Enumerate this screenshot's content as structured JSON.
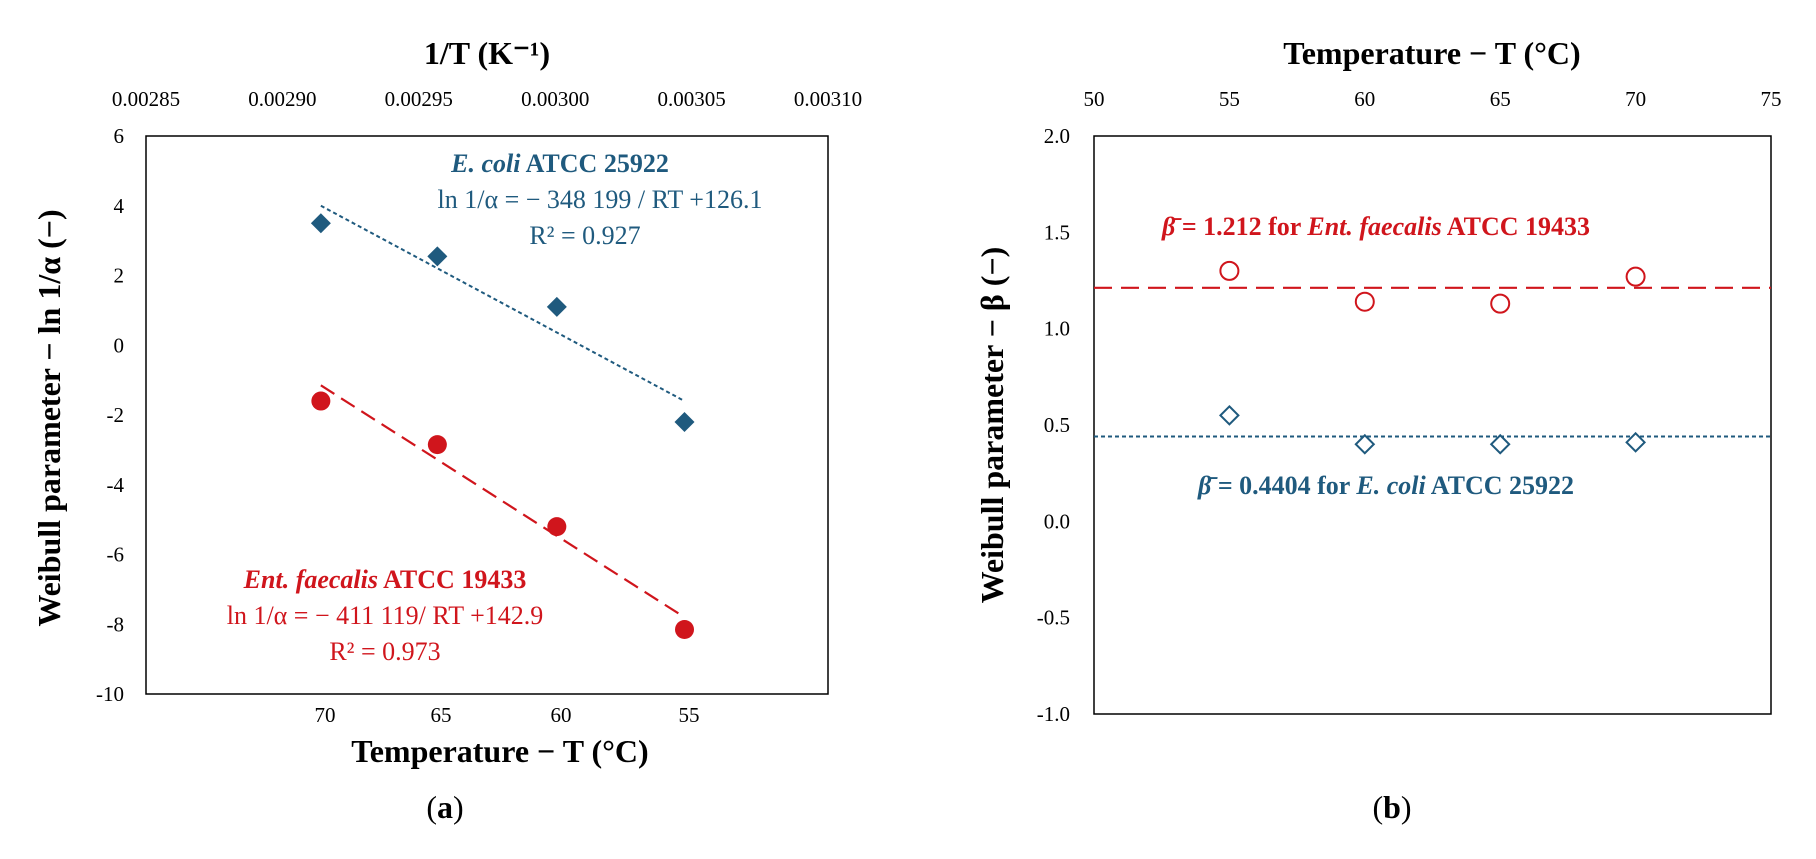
{
  "chart_data": [
    {
      "panel_label_prefix": "(",
      "panel_label": "a",
      "panel_label_suffix": ")",
      "type": "scatter",
      "top_axis": {
        "label": "1/T (K⁻¹)",
        "range": [
          0.00285,
          0.0031
        ],
        "ticks": [
          "0.00285",
          "0.00290",
          "0.00295",
          "0.00300",
          "0.00305",
          "0.00310"
        ]
      },
      "bottom_axis": {
        "label": "Temperature − T (°C)",
        "ticks": [
          "70",
          "65",
          "60",
          "55"
        ],
        "tick_positions_invT": [
          0.0029141,
          0.0029568,
          0.0030006,
          0.0030474
        ]
      },
      "y_axis": {
        "label": "Weibull parameter − ln 1/α (−)",
        "range": [
          -10,
          6
        ],
        "ticks": [
          "6",
          "4",
          "2",
          "0",
          "-2",
          "-4",
          "-6",
          "-8",
          "-10"
        ]
      },
      "colors": {
        "ecoli": "#1f5a7e",
        "entf": "#d0151c"
      },
      "series": [
        {
          "name": "E. coli ATCC 25922",
          "marker": "filled-diamond",
          "x_invT": [
            0.0029141,
            0.0029568,
            0.0030006,
            0.0030474
          ],
          "y": [
            3.5,
            2.55,
            1.1,
            -2.2
          ],
          "fit": {
            "x": [
              0.0029141,
              0.0030474
            ],
            "y": [
              4.0,
              -1.6
            ]
          }
        },
        {
          "name": "Ent. faecalis ATCC 19433",
          "marker": "filled-circle",
          "x_invT": [
            0.0029141,
            0.0029568,
            0.0030006,
            0.0030474
          ],
          "y": [
            -1.6,
            -2.85,
            -5.2,
            -8.15
          ],
          "fit": {
            "x": [
              0.0029141,
              0.0030474
            ],
            "y": [
              -1.15,
              -7.8
            ]
          }
        }
      ],
      "annotations": {
        "ecoli": {
          "italic": "E. coli",
          "bold": " ATCC 25922",
          "equation": "ln 1/α = − 348 199 / RT +126.1",
          "r2": "R² = 0.927"
        },
        "entf": {
          "italic": "Ent. faecalis",
          "bold": " ATCC 19433",
          "equation": "ln 1/α = − 411 119/ RT +142.9",
          "r2": "R² = 0.973"
        }
      }
    },
    {
      "panel_label_prefix": "(",
      "panel_label": "b",
      "panel_label_suffix": ")",
      "type": "scatter",
      "top_axis": {
        "label": "Temperature − T (°C)",
        "range": [
          50,
          75
        ],
        "ticks": [
          "50",
          "55",
          "60",
          "65",
          "70",
          "75"
        ]
      },
      "y_axis": {
        "label": "Weibull parameter − β (−)",
        "range": [
          -1.0,
          2.0
        ],
        "ticks": [
          "2.0",
          "1.5",
          "1.0",
          "0.5",
          "0.0",
          "-0.5",
          "-1.0"
        ]
      },
      "series": [
        {
          "name": "Ent. faecalis ATCC 19433",
          "marker": "open-circle",
          "x": [
            55,
            60,
            65,
            70
          ],
          "y": [
            1.3,
            1.14,
            1.13,
            1.27
          ],
          "mean": 1.212
        },
        {
          "name": "E. coli ATCC 25922",
          "marker": "open-diamond",
          "x": [
            55,
            60,
            65,
            70
          ],
          "y": [
            0.55,
            0.4,
            0.4,
            0.41
          ],
          "mean": 0.4404
        }
      ],
      "annotations": {
        "entf": {
          "symbol": "β̄",
          "text": "  = 1.212 for ",
          "italic": "Ent. faecalis",
          "bold": " ATCC 19433"
        },
        "ecoli": {
          "symbol": "β̄",
          "text": "  = 0.4404 for ",
          "italic": "E. coli",
          "bold": " ATCC 25922"
        }
      }
    }
  ]
}
